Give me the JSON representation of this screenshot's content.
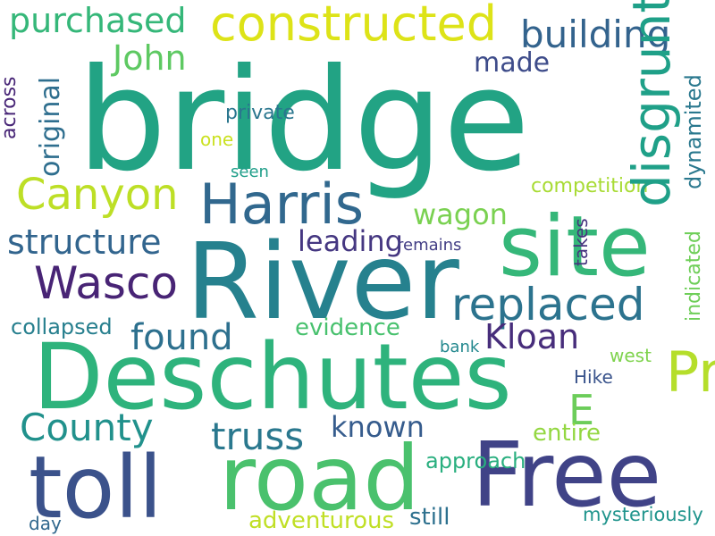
{
  "words": [
    {
      "id": "bridge",
      "text": "bridge",
      "color": "#22a384"
    },
    {
      "id": "river",
      "text": "River",
      "color": "#26818e"
    },
    {
      "id": "deschutes",
      "text": "Deschutes",
      "color": "#2eb37c"
    },
    {
      "id": "free",
      "text": "Free",
      "color": "#404387"
    },
    {
      "id": "road",
      "text": "road",
      "color": "#4ac16d"
    },
    {
      "id": "toll",
      "text": "toll",
      "color": "#3b528b"
    },
    {
      "id": "site",
      "text": "site",
      "color": "#35b779"
    },
    {
      "id": "constructed",
      "text": "constructed",
      "color": "#dde318"
    },
    {
      "id": "purchased",
      "text": "purchased",
      "color": "#35b779"
    },
    {
      "id": "building",
      "text": "building",
      "color": "#33638d"
    },
    {
      "id": "harris",
      "text": "Harris",
      "color": "#31688e"
    },
    {
      "id": "canyon",
      "text": "Canyon",
      "color": "#bddf26"
    },
    {
      "id": "john",
      "text": "John",
      "color": "#5ec962"
    },
    {
      "id": "made",
      "text": "made",
      "color": "#3e4c8a"
    },
    {
      "id": "structure",
      "text": "structure",
      "color": "#32658e"
    },
    {
      "id": "wasco",
      "text": "Wasco",
      "color": "#482475"
    },
    {
      "id": "wagon",
      "text": "wagon",
      "color": "#7ad151"
    },
    {
      "id": "replaced",
      "text": "replaced",
      "color": "#2c738e"
    },
    {
      "id": "leading",
      "text": "leading",
      "color": "#453781"
    },
    {
      "id": "found",
      "text": "found",
      "color": "#2d708e"
    },
    {
      "id": "kloan",
      "text": "Kloan",
      "color": "#472d7b"
    },
    {
      "id": "pratt",
      "text": "Pratt",
      "color": "#b5de2b"
    },
    {
      "id": "e",
      "text": "E",
      "color": "#6ccd5a"
    },
    {
      "id": "county",
      "text": "County",
      "color": "#21918c"
    },
    {
      "id": "truss",
      "text": "truss",
      "color": "#2a788e"
    },
    {
      "id": "known",
      "text": "known",
      "color": "#365c8d"
    },
    {
      "id": "entire",
      "text": "entire",
      "color": "#93d741"
    },
    {
      "id": "collapsed",
      "text": "collapsed",
      "color": "#277f8e"
    },
    {
      "id": "evidence",
      "text": "evidence",
      "color": "#48c16e"
    },
    {
      "id": "private",
      "text": "private",
      "color": "#2a768e"
    },
    {
      "id": "one",
      "text": "one",
      "color": "#cae11f"
    },
    {
      "id": "seen",
      "text": "seen",
      "color": "#1f9e89"
    },
    {
      "id": "competition",
      "text": "competition",
      "color": "#a8db34"
    },
    {
      "id": "remains",
      "text": "remains",
      "color": "#433e85"
    },
    {
      "id": "bank",
      "text": "bank",
      "color": "#23888e"
    },
    {
      "id": "west",
      "text": "west",
      "color": "#7fd34e"
    },
    {
      "id": "hike",
      "text": "Hike",
      "color": "#3a548c"
    },
    {
      "id": "approach",
      "text": "approach",
      "color": "#29af7f"
    },
    {
      "id": "day",
      "text": "day",
      "color": "#31688e"
    },
    {
      "id": "adventurous",
      "text": "adventurous",
      "color": "#c0df25"
    },
    {
      "id": "still",
      "text": "still",
      "color": "#2d708e"
    },
    {
      "id": "mysteriously",
      "text": "mysteriously",
      "color": "#1f948c"
    },
    {
      "id": "disgruntled",
      "text": "disgruntled",
      "color": "#1fa088"
    },
    {
      "id": "original",
      "text": "original",
      "color": "#2e6e8e"
    },
    {
      "id": "across",
      "text": "across",
      "color": "#482677"
    },
    {
      "id": "dynamited",
      "text": "dynamited",
      "color": "#2a788e"
    },
    {
      "id": "indicated",
      "text": "indicated",
      "color": "#6ece58"
    },
    {
      "id": "takes",
      "text": "takes",
      "color": "#46337e"
    }
  ]
}
